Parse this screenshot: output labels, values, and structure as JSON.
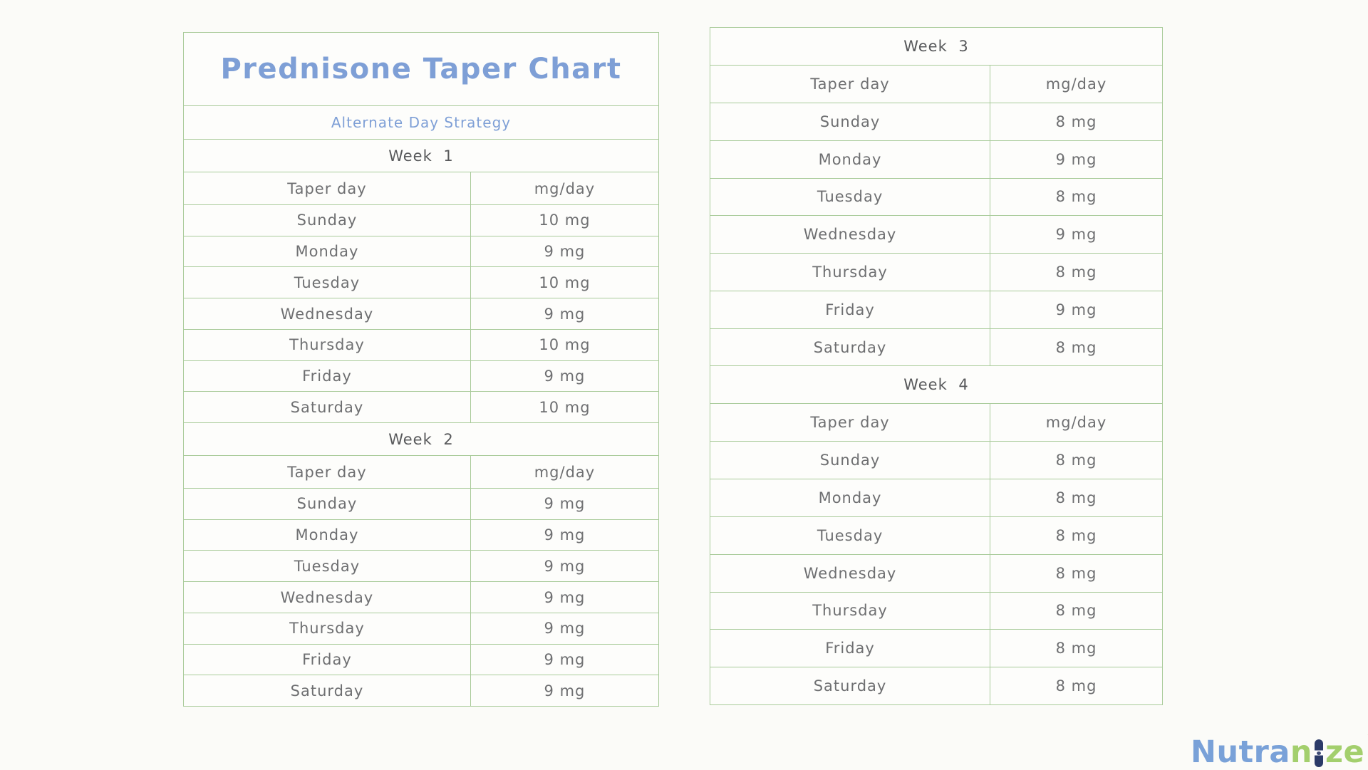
{
  "colors": {
    "page_bg": "#fbfbf8",
    "border_green": "#a9cb9a",
    "title_blue": "#7e9fd6",
    "text_gray": "#6e6f71",
    "week_gray": "#58595b",
    "logo_blue": "#79a1d8",
    "logo_green": "#a3cf6d",
    "logo_navy": "#2b3a68"
  },
  "header": {
    "title": "Prednisone Taper Chart",
    "subtitle": "Alternate Day Strategy"
  },
  "column_headers": {
    "day": "Taper day",
    "dose": "mg/day"
  },
  "weeks": [
    {
      "label": "Week 1",
      "days": [
        {
          "day": "Sunday",
          "dose": "10 mg"
        },
        {
          "day": "Monday",
          "dose": "9 mg"
        },
        {
          "day": "Tuesday",
          "dose": "10 mg"
        },
        {
          "day": "Wednesday",
          "dose": "9 mg"
        },
        {
          "day": "Thursday",
          "dose": "10 mg"
        },
        {
          "day": "Friday",
          "dose": "9 mg"
        },
        {
          "day": "Saturday",
          "dose": "10 mg"
        }
      ]
    },
    {
      "label": "Week 2",
      "days": [
        {
          "day": "Sunday",
          "dose": "9 mg"
        },
        {
          "day": "Monday",
          "dose": "9 mg"
        },
        {
          "day": "Tuesday",
          "dose": "9 mg"
        },
        {
          "day": "Wednesday",
          "dose": "9 mg"
        },
        {
          "day": "Thursday",
          "dose": "9 mg"
        },
        {
          "day": "Friday",
          "dose": "9 mg"
        },
        {
          "day": "Saturday",
          "dose": "9 mg"
        }
      ]
    },
    {
      "label": "Week 3",
      "days": [
        {
          "day": "Sunday",
          "dose": "8 mg"
        },
        {
          "day": "Monday",
          "dose": "9 mg"
        },
        {
          "day": "Tuesday",
          "dose": "8 mg"
        },
        {
          "day": "Wednesday",
          "dose": "9 mg"
        },
        {
          "day": "Thursday",
          "dose": "8 mg"
        },
        {
          "day": "Friday",
          "dose": "9 mg"
        },
        {
          "day": "Saturday",
          "dose": "8 mg"
        }
      ]
    },
    {
      "label": "Week 4",
      "days": [
        {
          "day": "Sunday",
          "dose": "8 mg"
        },
        {
          "day": "Monday",
          "dose": "8 mg"
        },
        {
          "day": "Tuesday",
          "dose": "8 mg"
        },
        {
          "day": "Wednesday",
          "dose": "8 mg"
        },
        {
          "day": "Thursday",
          "dose": "8 mg"
        },
        {
          "day": "Friday",
          "dose": "8 mg"
        },
        {
          "day": "Saturday",
          "dose": "8 mg"
        }
      ]
    }
  ],
  "logo": {
    "text_blue": "Nutra",
    "text_green_n": "n",
    "text_green_ze": "ze",
    "trademark": "™"
  }
}
